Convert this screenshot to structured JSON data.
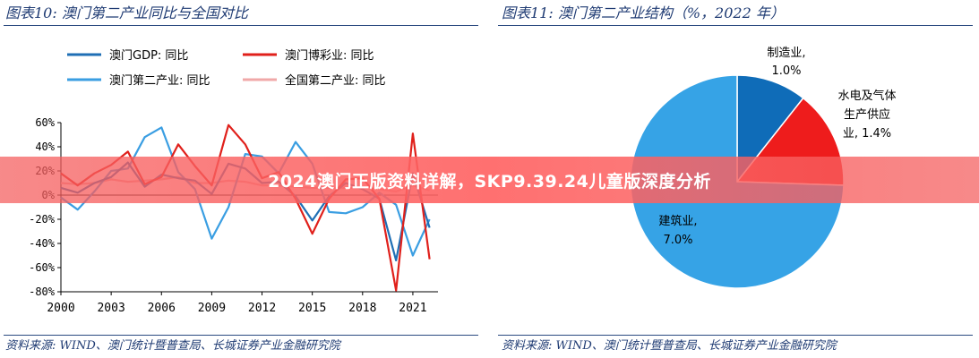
{
  "left_panel": {
    "title": "图表10:  澳门第二产业同比与全国对比",
    "source": "资料来源:  WIND、澳门统计暨普查局、长城证券产业金融研究院"
  },
  "right_panel": {
    "title": "图表11:  澳门第二产业结构（%，2022 年）",
    "source": "资料来源:  WIND、澳门统计暨普查局、长城证券产业金融研究院"
  },
  "banner": {
    "text": "2024澳门正版资料详解，SKP9.39.24儿童版深度分析"
  },
  "colors": {
    "gdp": "#1f6fb5",
    "gaming": "#e0201b",
    "secondary": "#3a9ee2",
    "national": "#f0a8a8",
    "pie_manufacturing": "#0f6cb8",
    "pie_utilities": "#ee1c1c",
    "pie_construction": "#36a3e6"
  },
  "chart_data": [
    {
      "type": "line",
      "title": "澳门第二产业同比与全国对比",
      "x": [
        2000,
        2001,
        2002,
        2003,
        2004,
        2005,
        2006,
        2007,
        2008,
        2009,
        2010,
        2011,
        2012,
        2013,
        2014,
        2015,
        2016,
        2017,
        2018,
        2019,
        2020,
        2021,
        2022
      ],
      "xticks": [
        2000,
        2003,
        2006,
        2009,
        2012,
        2015,
        2018,
        2021
      ],
      "yticks": [
        "60%",
        "40%",
        "20%",
        "0%",
        "-20%",
        "-40%",
        "-60%",
        "-80%"
      ],
      "ylim": [
        -80,
        60
      ],
      "unit": "%",
      "series": [
        {
          "name": "澳门GDP: 同比",
          "color_key": "gdp",
          "values": [
            6,
            2,
            10,
            15,
            27,
            7,
            17,
            14,
            12,
            1,
            26,
            22,
            10,
            11,
            -1,
            -21,
            -1,
            10,
            5,
            -3,
            -54,
            18,
            -27
          ]
        },
        {
          "name": "澳门博彩业: 同比",
          "color_key": "gaming",
          "values": [
            18,
            8,
            18,
            25,
            36,
            9,
            15,
            42,
            24,
            8,
            58,
            42,
            14,
            19,
            -3,
            -32,
            -3,
            13,
            14,
            -3,
            -79,
            51,
            -53
          ]
        },
        {
          "name": "澳门第二产业: 同比",
          "color_key": "secondary",
          "values": [
            -2,
            -12,
            3,
            20,
            22,
            48,
            56,
            19,
            5,
            -36,
            -10,
            34,
            32,
            18,
            44,
            26,
            -14,
            -15,
            -10,
            2,
            -8,
            -50,
            -20
          ]
        },
        {
          "name": "全国第二产业: 同比",
          "color_key": "national",
          "values": [
            10,
            9,
            10,
            13,
            11,
            12,
            13,
            15,
            10,
            10,
            12,
            11,
            8,
            8,
            7,
            6,
            6,
            6,
            6,
            5,
            3,
            8,
            4
          ]
        }
      ]
    },
    {
      "type": "pie",
      "title": "澳门第二产业结构（%，2022 年）",
      "slices": [
        {
          "name": "制造业",
          "value": 1.0,
          "value_label": "1.0%",
          "color_key": "pie_manufacturing"
        },
        {
          "name": "水电及气体生产供应业",
          "value": 1.4,
          "value_label": "1.4%",
          "color_key": "pie_utilities"
        },
        {
          "name": "建筑业",
          "value": 7.0,
          "value_label": "7.0%",
          "color_key": "pie_construction"
        }
      ],
      "label_lines": {
        "manufacturing": [
          "制造业,",
          "1.0%"
        ],
        "utilities": [
          "水电及气体",
          "生产供应",
          "业, 1.4%"
        ],
        "construction": [
          "建筑业,",
          "7.0%"
        ]
      }
    }
  ]
}
